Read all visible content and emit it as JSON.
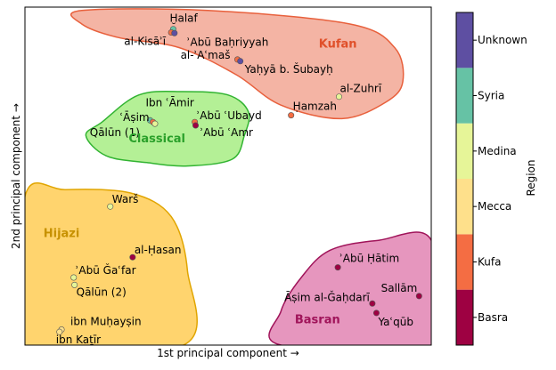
{
  "chart_data": {
    "type": "scatter",
    "xlabel": "1st principal component →",
    "ylabel": "2nd principal component →",
    "colorbar": {
      "label": "Region",
      "categories": [
        "Basra",
        "Kufa",
        "Mecca",
        "Medina",
        "Syria",
        "Unknown"
      ],
      "colors": [
        "#9e0142",
        "#f46d43",
        "#fee08b",
        "#e6f598",
        "#66c2a5",
        "#5e4fa2"
      ]
    },
    "xlim": [
      0,
      100
    ],
    "ylim": [
      0,
      100
    ],
    "groups": [
      {
        "name": "Kufan",
        "fill": "#f4b4a4",
        "stroke": "#e8603c",
        "label_color": "#e0502a",
        "label_pos": [
          77,
          88
        ],
        "outline": [
          [
            14,
            99
          ],
          [
            45,
            99
          ],
          [
            80,
            95
          ],
          [
            91,
            88
          ],
          [
            93,
            78
          ],
          [
            89,
            72
          ],
          [
            78,
            67
          ],
          [
            63,
            71
          ],
          [
            52,
            80
          ],
          [
            38,
            88
          ],
          [
            23,
            91
          ],
          [
            14,
            95
          ]
        ]
      },
      {
        "name": "Classical",
        "fill": "#b4f096",
        "stroke": "#32b432",
        "label_color": "#2aa02a",
        "label_pos": [
          32.5,
          60
        ],
        "outline": [
          [
            19,
            66
          ],
          [
            28,
            74
          ],
          [
            39,
            75
          ],
          [
            50,
            74
          ],
          [
            55,
            69
          ],
          [
            54,
            62
          ],
          [
            51,
            55
          ],
          [
            40,
            53
          ],
          [
            30,
            54
          ],
          [
            20,
            56
          ],
          [
            15,
            62
          ]
        ]
      },
      {
        "name": "Hijazi",
        "fill": "#ffd46e",
        "stroke": "#e1a500",
        "label_color": "#c79100",
        "label_pos": [
          9,
          32
        ],
        "outline": [
          [
            0,
            44
          ],
          [
            10,
            46
          ],
          [
            26,
            45
          ],
          [
            36,
            38
          ],
          [
            40,
            22
          ],
          [
            39,
            0
          ],
          [
            0,
            0
          ]
        ]
      },
      {
        "name": "Basran",
        "fill": "#e696be",
        "stroke": "#a0145a",
        "label_color": "#a0145a",
        "label_pos": [
          72,
          6.5
        ],
        "outline": [
          [
            100,
            31
          ],
          [
            87,
            31
          ],
          [
            75,
            28
          ],
          [
            68,
            20
          ],
          [
            63,
            10
          ],
          [
            63,
            0
          ],
          [
            100,
            0
          ]
        ]
      }
    ],
    "points": [
      {
        "label": "Ḫalaf",
        "x": 36.5,
        "y": 93.5,
        "region": "Syria"
      },
      {
        "label": "al-Kisāʾī",
        "x": 36.0,
        "y": 92.5,
        "region": "Kufa"
      },
      {
        "label": "ʾAbū Baḥriyyah",
        "x": 36.8,
        "y": 92.3,
        "region": "Unknown"
      },
      {
        "label": "al-ʾAʿmaš",
        "x": 52.3,
        "y": 84.5,
        "region": "Kufa"
      },
      {
        "label": "Yaḥyā b. Šubayḥ",
        "x": 53.0,
        "y": 84.0,
        "region": "Unknown"
      },
      {
        "label": "al-Zuhrī",
        "x": 77.3,
        "y": 73.5,
        "region": "Medina"
      },
      {
        "label": "Ḥamzah",
        "x": 65.5,
        "y": 68.0,
        "region": "Kufa"
      },
      {
        "label": "Ibn ʿĀmir",
        "x": 30.8,
        "y": 66.5,
        "region": "Syria"
      },
      {
        "label": "ʿĀṣim",
        "x": 31.5,
        "y": 66.0,
        "region": "Kufa"
      },
      {
        "label": "Qālūn (1)",
        "x": 32.0,
        "y": 65.5,
        "region": "Medina"
      },
      {
        "label": "ʾAbū ʿUbayd",
        "x": 41.8,
        "y": 66.0,
        "region": "Kufa"
      },
      {
        "label": "ʾAbū ʿAmr",
        "x": 42.0,
        "y": 65.0,
        "region": "Basra"
      },
      {
        "label": "Warš",
        "x": 21.0,
        "y": 41.0,
        "region": "Medina"
      },
      {
        "label": "al-Ḥasan",
        "x": 26.5,
        "y": 26.0,
        "region": "Basra"
      },
      {
        "label": "ʾAbū Ǧaʿfar",
        "x": 12.0,
        "y": 20.0,
        "region": "Medina"
      },
      {
        "label": "Qālūn (2)",
        "x": 12.2,
        "y": 17.8,
        "region": "Medina"
      },
      {
        "label": "ibn Muḥayṣin",
        "x": 9.0,
        "y": 4.6,
        "region": "Mecca"
      },
      {
        "label": "ibn Kaṯīr",
        "x": 8.5,
        "y": 3.9,
        "region": "Mecca"
      },
      {
        "label": "ʾAbū Ḥātim",
        "x": 77.0,
        "y": 23.0,
        "region": "Basra"
      },
      {
        "label": "Sallām",
        "x": 97.0,
        "y": 14.5,
        "region": "Basra"
      },
      {
        "label": "Āṣim al-Ǧaḥdarī",
        "x": 85.5,
        "y": 12.3,
        "region": "Basra"
      },
      {
        "label": "Yaʿqūb",
        "x": 86.5,
        "y": 9.5,
        "region": "Basra"
      }
    ]
  }
}
